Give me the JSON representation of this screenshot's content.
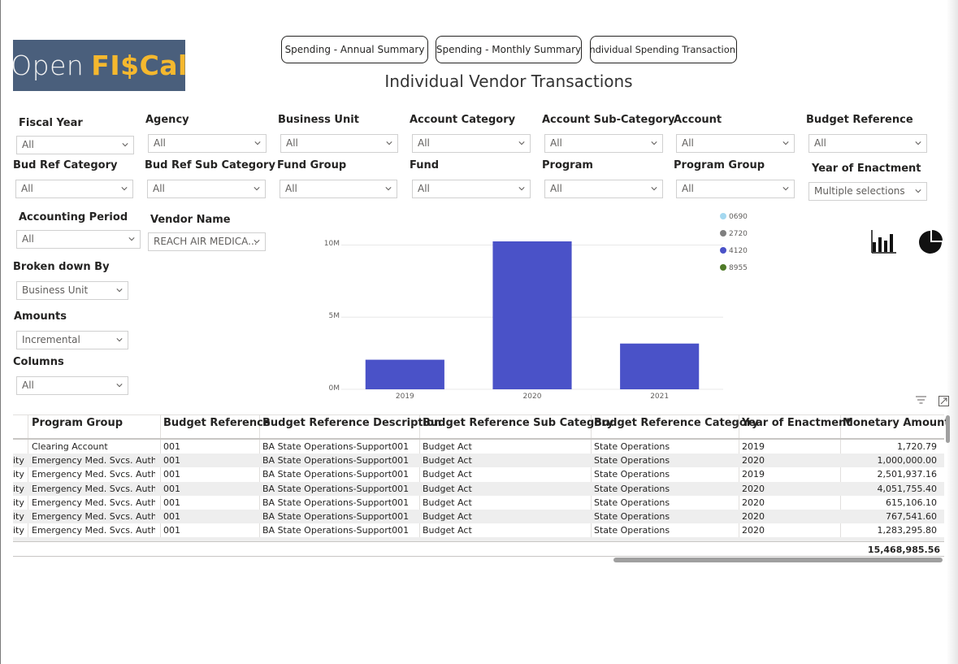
{
  "logo": {
    "word1": "Open",
    "word2": "FI$Cal"
  },
  "nav": [
    {
      "label": "Spending - Annual Summary"
    },
    {
      "label": "Spending - Monthly Summary"
    },
    {
      "label": "Individual Spending Transactions"
    }
  ],
  "page_title": "Individual Vendor Transactions",
  "slicers": {
    "fiscal_year": {
      "label": "Fiscal Year",
      "value": "All"
    },
    "agency": {
      "label": "Agency",
      "value": "All"
    },
    "business_unit": {
      "label": "Business Unit",
      "value": "All"
    },
    "account_category": {
      "label": "Account Category",
      "value": "All"
    },
    "account_sub_category": {
      "label": "Account Sub-Category",
      "value": "All"
    },
    "account": {
      "label": "Account",
      "value": "All"
    },
    "budget_reference": {
      "label": "Budget Reference",
      "value": "All"
    },
    "bud_ref_category": {
      "label": "Bud Ref Category",
      "value": "All"
    },
    "bud_ref_sub_category": {
      "label": "Bud Ref Sub Category",
      "value": "All"
    },
    "fund_group": {
      "label": "Fund Group",
      "value": "All"
    },
    "fund": {
      "label": "Fund",
      "value": "All"
    },
    "program": {
      "label": "Program",
      "value": "All"
    },
    "program_group": {
      "label": "Program Group",
      "value": "All"
    },
    "year_of_enactment": {
      "label": "Year of Enactment",
      "value": "Multiple selections"
    },
    "accounting_period": {
      "label": "Accounting Period",
      "value": "All"
    },
    "vendor_name": {
      "label": "Vendor Name",
      "value": "REACH AIR MEDICA..."
    },
    "broken_down_by": {
      "label": "Broken down By",
      "value": "Business Unit"
    },
    "amounts": {
      "label": "Amounts",
      "value": "Incremental"
    },
    "columns": {
      "label": "Columns",
      "value": "All"
    }
  },
  "chart_data": {
    "type": "bar",
    "categories": [
      "2019",
      "2020",
      "2021"
    ],
    "series": [
      {
        "name": "0690",
        "color": "#a4d8f0",
        "values": [
          0,
          0,
          0
        ]
      },
      {
        "name": "2720",
        "color": "#7f7f7f",
        "values": [
          0,
          0,
          0
        ]
      },
      {
        "name": "4120",
        "color": "#4a52c8",
        "values": [
          2.05,
          10.25,
          3.17
        ]
      },
      {
        "name": "8955",
        "color": "#4f7a28",
        "values": [
          0,
          0,
          0
        ]
      }
    ],
    "ylim": [
      0,
      10.25
    ],
    "yticks": [
      {
        "v": 0,
        "label": "0M"
      },
      {
        "v": 5,
        "label": "5M"
      },
      {
        "v": 10,
        "label": "10M"
      }
    ],
    "legend": "top-right",
    "grid": true
  },
  "table": {
    "headers": [
      "Program Group",
      "Budget Reference",
      "Budget Reference Description",
      "Budget Reference Sub Category",
      "Budget Reference Category",
      "Year of Enactment",
      "Monetary Amount"
    ],
    "rows": [
      {
        "lead": "",
        "cells": [
          "Clearing Account",
          "001",
          "BA State Operations-Support001",
          "Budget Act",
          "State Operations",
          "2019",
          "1,720.79"
        ]
      },
      {
        "lead": "ity",
        "cells": [
          "Emergency Med. Svcs. Authority",
          "001",
          "BA State Operations-Support001",
          "Budget Act",
          "State Operations",
          "2020",
          "1,000,000.00"
        ]
      },
      {
        "lead": "ity",
        "cells": [
          "Emergency Med. Svcs. Authority",
          "001",
          "BA State Operations-Support001",
          "Budget Act",
          "State Operations",
          "2019",
          "2,501,937.16"
        ]
      },
      {
        "lead": "ity",
        "cells": [
          "Emergency Med. Svcs. Authority",
          "001",
          "BA State Operations-Support001",
          "Budget Act",
          "State Operations",
          "2020",
          "4,051,755.40"
        ]
      },
      {
        "lead": "ity",
        "cells": [
          "Emergency Med. Svcs. Authority",
          "001",
          "BA State Operations-Support001",
          "Budget Act",
          "State Operations",
          "2020",
          "615,106.10"
        ]
      },
      {
        "lead": "ity",
        "cells": [
          "Emergency Med. Svcs. Authority",
          "001",
          "BA State Operations-Support001",
          "Budget Act",
          "State Operations",
          "2020",
          "767,541.60"
        ]
      },
      {
        "lead": "ity",
        "cells": [
          "Emergency Med. Svcs. Authority",
          "001",
          "BA State Operations-Support001",
          "Budget Act",
          "State Operations",
          "2020",
          "1,283,295.80"
        ]
      }
    ],
    "total": "15,468,985.56"
  }
}
